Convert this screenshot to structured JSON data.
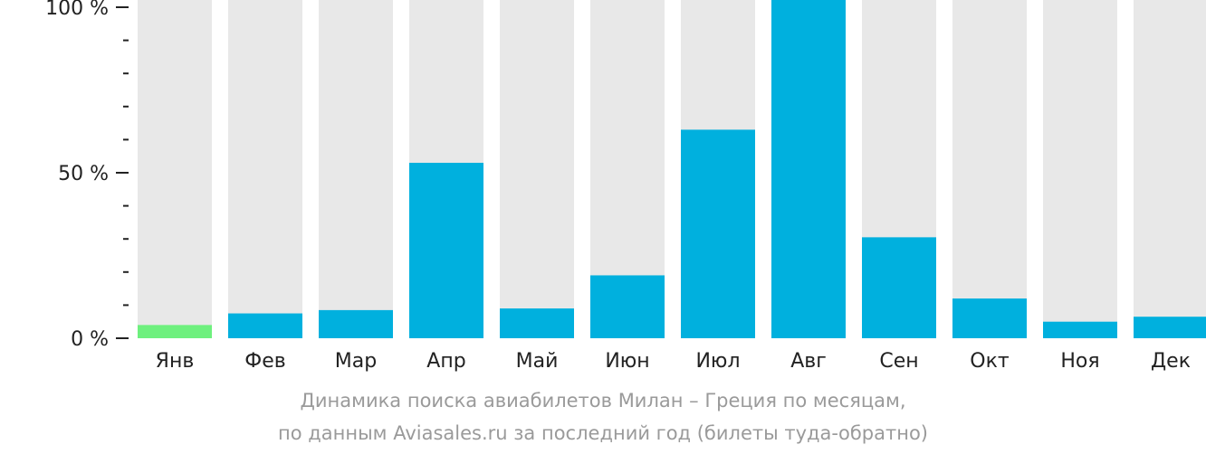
{
  "colors": {
    "bar": "#00b0de",
    "bar_highlight": "#6ef07e",
    "track": "#e8e8e8",
    "axis": "#222222",
    "caption": "#9a9a9a"
  },
  "caption": {
    "line1": "Динамика поиска авиабилетов Милан – Греция по месяцам,",
    "line2": "по данным Aviasales.ru за последний год (билеты туда-обратно)"
  },
  "chart_data": {
    "type": "bar",
    "categories": [
      "Янв",
      "Фев",
      "Мар",
      "Апр",
      "Май",
      "Июн",
      "Июл",
      "Авг",
      "Сен",
      "Окт",
      "Ноя",
      "Дек"
    ],
    "values": [
      4,
      7.5,
      8.5,
      53,
      9,
      19,
      63,
      100,
      30.5,
      12,
      5,
      6.5
    ],
    "highlight_index": 0,
    "ylim": [
      0,
      100
    ],
    "yticks": [
      {
        "value": 0,
        "label": "0 %"
      },
      {
        "value": 50,
        "label": "50 %"
      },
      {
        "value": 100,
        "label": "100 %"
      }
    ],
    "minor_step": 10,
    "xlabel": "",
    "ylabel": "",
    "grid": false
  }
}
